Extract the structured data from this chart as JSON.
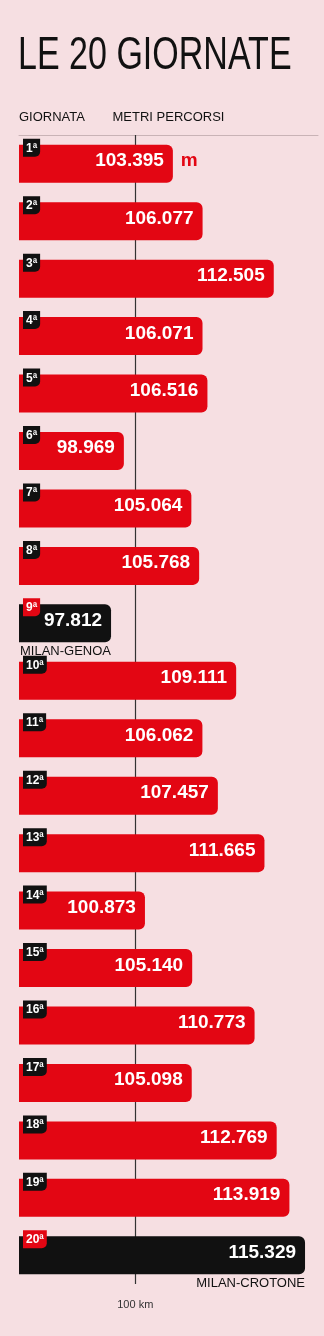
{
  "chart_data": {
    "type": "bar",
    "orientation": "horizontal",
    "title": "LE 20 GIORNATE",
    "xlabel": "METRI PERCORSI",
    "ylabel": "GIORNATA",
    "categories": [
      "1ª",
      "2ª",
      "3ª",
      "4ª",
      "5ª",
      "6ª",
      "7ª",
      "8ª",
      "9ª",
      "10ª",
      "11ª",
      "12ª",
      "13ª",
      "14ª",
      "15ª",
      "16ª",
      "17ª",
      "18ª",
      "19ª",
      "20ª"
    ],
    "values": [
      103395,
      106077,
      112505,
      106071,
      106516,
      98969,
      105064,
      105768,
      97812,
      109111,
      106062,
      107457,
      111665,
      100873,
      105140,
      110773,
      105098,
      112769,
      113919,
      115329
    ],
    "value_labels": [
      "103.395",
      "106.077",
      "112.505",
      "106.071",
      "106.516",
      "98.969",
      "105.064",
      "105.768",
      "97.812",
      "109.111",
      "106.062",
      "107.457",
      "111.665",
      "100.873",
      "105.140",
      "110.773",
      "105.098",
      "112.769",
      "113.919",
      "115.329"
    ],
    "colors": [
      "#e30613",
      "#e30613",
      "#e30613",
      "#e30613",
      "#e30613",
      "#e30613",
      "#e30613",
      "#e30613",
      "#111111",
      "#e30613",
      "#e30613",
      "#e30613",
      "#e30613",
      "#e30613",
      "#e30613",
      "#e30613",
      "#e30613",
      "#e30613",
      "#e30613",
      "#111111"
    ],
    "xlim": [
      89500,
      116500
    ],
    "tick_labels": "y",
    "ref_lines": [
      {
        "axis": "x",
        "value": 100000,
        "label": "100 km",
        "color": "#333333"
      }
    ],
    "annotations": [
      "m",
      {
        "text": "MILAN-GENOA",
        "x": 97812,
        "y": "9ª"
      },
      {
        "text": "MILAN-CROTONE",
        "x": 115329,
        "y": "20ª"
      }
    ],
    "grid": false
  }
}
